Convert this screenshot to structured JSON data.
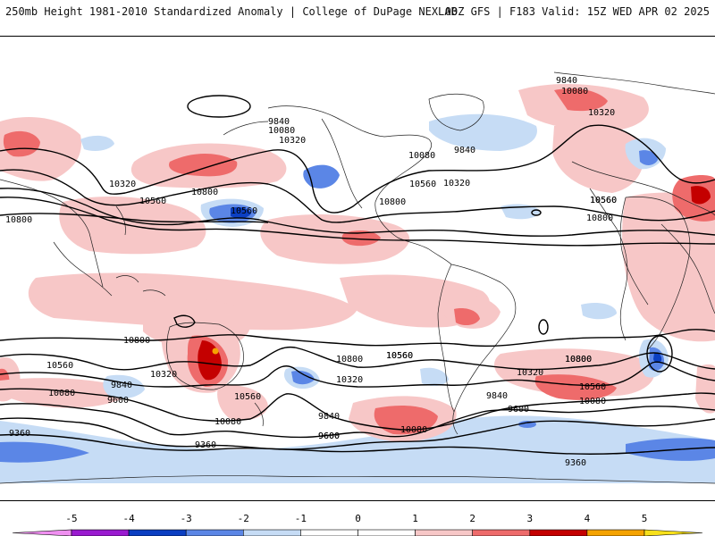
{
  "header": {
    "left_title": "250mb Height 1981-2010 Standardized Anomaly | College of DuPage NEXLAB",
    "right_title": "00Z GFS | F183 Valid: 15Z WED APR 02 2025"
  },
  "map": {
    "contour_labels": [
      "9840",
      "10080",
      "10320",
      "9840",
      "10080",
      "10320",
      "9840",
      "10080",
      "10320",
      "10560",
      "10560",
      "10800",
      "10560",
      "10800",
      "10560",
      "10320",
      "10560",
      "10800",
      "10800",
      "10800",
      "10800",
      "10560",
      "10320",
      "10560",
      "10800",
      "10320",
      "10560",
      "9840",
      "10080",
      "9600",
      "10560",
      "10080",
      "9840",
      "9600",
      "9360",
      "10080",
      "9600",
      "10320",
      "9840",
      "9600",
      "9360",
      "10560",
      "10800",
      "10080",
      "9360"
    ],
    "colors": {
      "neg_light": "#c6dcf5",
      "neg_mid": "#5b86e6",
      "neg_dark": "#0b3fc2",
      "pos_light": "#f7c7c7",
      "pos_mid": "#ee6b6b",
      "pos_dark": "#c40000",
      "pos_extreme": "#f5a300",
      "contour": "#000000",
      "coast": "#222222"
    }
  },
  "colorbar": {
    "ticks": [
      "-5",
      "-4",
      "-3",
      "-2",
      "-1",
      "0",
      "1",
      "2",
      "3",
      "4",
      "5"
    ],
    "colors": [
      "#ef8ff0",
      "#9a1ad0",
      "#0b3fc2",
      "#5b86e6",
      "#c6dcf5",
      "#ffffff",
      "#ffffff",
      "#f7c7c7",
      "#ee6b6b",
      "#c40000",
      "#f5a300",
      "#f7e01a"
    ]
  }
}
